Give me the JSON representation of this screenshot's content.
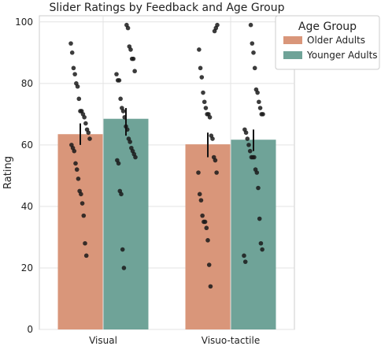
{
  "chart_data": {
    "type": "bar",
    "title": "Slider Ratings by Feedback and Age Group",
    "xlabel": "",
    "ylabel": "Rating",
    "ylim": [
      0,
      102
    ],
    "yticks": [
      0,
      20,
      40,
      60,
      80,
      100
    ],
    "categories": [
      "Visual",
      "Visuo-tactile"
    ],
    "grid": true,
    "legend": {
      "title": "Age Group",
      "placement": "top-right"
    },
    "series": [
      {
        "name": "Older Adults",
        "color": "#d9967a",
        "values": [
          63.5,
          60.2
        ],
        "error": [
          [
            60,
            67
          ],
          [
            56,
            64
          ]
        ],
        "points": [
          [
            93,
            90,
            85,
            83,
            80,
            79,
            75,
            71,
            71,
            70,
            69,
            67,
            65,
            64,
            62,
            60,
            59,
            58,
            54,
            52,
            49,
            45,
            44,
            41,
            37,
            28,
            24
          ],
          [
            97,
            98,
            99,
            91,
            85,
            82,
            77,
            74,
            72,
            70,
            70,
            69,
            63,
            62,
            56,
            55,
            51,
            51,
            44,
            42,
            37,
            35,
            35,
            33,
            29,
            21,
            14
          ]
        ]
      },
      {
        "name": "Younger Adults",
        "color": "#6fa398",
        "values": [
          68.5,
          61.7
        ],
        "error": [
          [
            63,
            72
          ],
          [
            58,
            65
          ]
        ],
        "points": [
          [
            99,
            98,
            92,
            91,
            88,
            88,
            84,
            83,
            81,
            81,
            75,
            72,
            71,
            69,
            66,
            65,
            62,
            61,
            59,
            58,
            57,
            56,
            55,
            54,
            45,
            44,
            26,
            20
          ],
          [
            99,
            93,
            90,
            85,
            78,
            77,
            74,
            72,
            70,
            70,
            65,
            64,
            62,
            60,
            58,
            56,
            56,
            56,
            52,
            51,
            46,
            36,
            28,
            26,
            24,
            22
          ]
        ]
      }
    ]
  }
}
